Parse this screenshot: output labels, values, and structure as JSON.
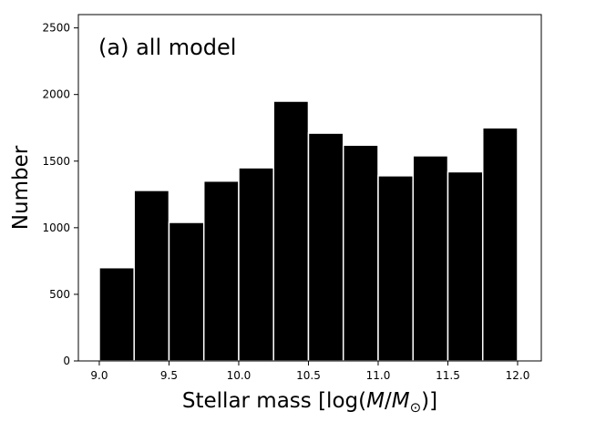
{
  "chart_data": {
    "type": "bar",
    "subtype": "histogram",
    "annotation": "(a) all model",
    "xlabel_prefix": "Stellar mass [log(",
    "xlabel_M": "M",
    "xlabel_slash": "/",
    "xlabel_Msub": "M",
    "xlabel_sun": "⊙",
    "xlabel_suffix": ")]",
    "ylabel": "Number",
    "bins": [
      {
        "x0": 9.0,
        "x1": 9.25,
        "value": 700
      },
      {
        "x0": 9.25,
        "x1": 9.5,
        "value": 1280
      },
      {
        "x0": 9.5,
        "x1": 9.75,
        "value": 1040
      },
      {
        "x0": 9.75,
        "x1": 10.0,
        "value": 1350
      },
      {
        "x0": 10.0,
        "x1": 10.25,
        "value": 1450
      },
      {
        "x0": 10.25,
        "x1": 10.5,
        "value": 1950
      },
      {
        "x0": 10.5,
        "x1": 10.75,
        "value": 1710
      },
      {
        "x0": 10.75,
        "x1": 11.0,
        "value": 1620
      },
      {
        "x0": 11.0,
        "x1": 11.25,
        "value": 1390
      },
      {
        "x0": 11.25,
        "x1": 11.5,
        "value": 1540
      },
      {
        "x0": 11.5,
        "x1": 11.75,
        "value": 1420
      },
      {
        "x0": 11.75,
        "x1": 12.0,
        "value": 1750
      }
    ],
    "xlim": [
      8.85,
      12.17
    ],
    "ylim": [
      0,
      2600
    ],
    "xticks": [
      "9.0",
      "9.5",
      "10.0",
      "10.5",
      "11.0",
      "11.5",
      "12.0"
    ],
    "yticks": [
      "0",
      "500",
      "1000",
      "1500",
      "2000",
      "2500"
    ],
    "bar_color": "#000000",
    "edge_color": "#ffffff",
    "grid": false,
    "legend": "none"
  }
}
